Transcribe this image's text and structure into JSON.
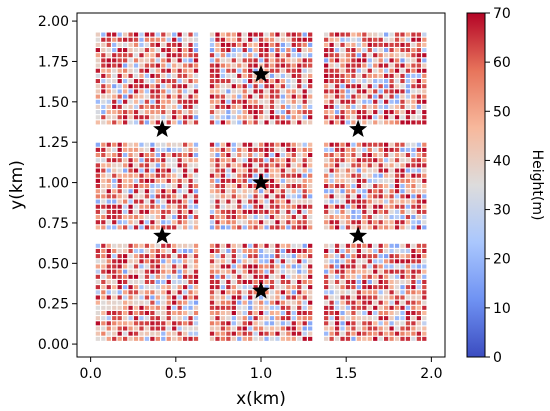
{
  "chart_data": {
    "type": "heatmap",
    "title": "",
    "xlabel": "x(km)",
    "ylabel": "y(km)",
    "xlim": [
      -0.08,
      2.08
    ],
    "ylim": [
      -0.08,
      2.05
    ],
    "x_ticks": [
      "0.0",
      "0.5",
      "1.0",
      "1.5",
      "2.0"
    ],
    "y_ticks": [
      "0.00",
      "0.25",
      "0.50",
      "0.75",
      "1.00",
      "1.25",
      "1.50",
      "1.75",
      "2.00"
    ],
    "grid": false,
    "colorbar": {
      "label": "Height(m)",
      "range": [
        0,
        70
      ],
      "ticks": [
        "0",
        "10",
        "20",
        "30",
        "40",
        "50",
        "60",
        "70"
      ],
      "colormap": "coolwarm",
      "colors": [
        "#3b4cc0",
        "#6f92f3",
        "#aac7fd",
        "#dddcdc",
        "#f7b89c",
        "#e7745b",
        "#b40426"
      ]
    },
    "building_grid": {
      "block_count": 3,
      "block_x_ranges": [
        [
          0.03,
          0.65
        ],
        [
          0.7,
          1.32
        ],
        [
          1.37,
          1.99
        ]
      ],
      "block_y_ranges": [
        [
          0.02,
          0.64
        ],
        [
          0.71,
          1.27
        ],
        [
          1.36,
          1.94
        ]
      ],
      "cell_size_km": 0.032,
      "building_size_km": 0.025
    },
    "stars": {
      "marker": "star",
      "color": "#000000",
      "points": [
        {
          "x": 1.0,
          "y": 1.67
        },
        {
          "x": 0.42,
          "y": 1.33
        },
        {
          "x": 1.57,
          "y": 1.33
        },
        {
          "x": 1.0,
          "y": 1.0
        },
        {
          "x": 0.42,
          "y": 0.67
        },
        {
          "x": 1.57,
          "y": 0.67
        },
        {
          "x": 1.0,
          "y": 0.33
        }
      ]
    }
  }
}
